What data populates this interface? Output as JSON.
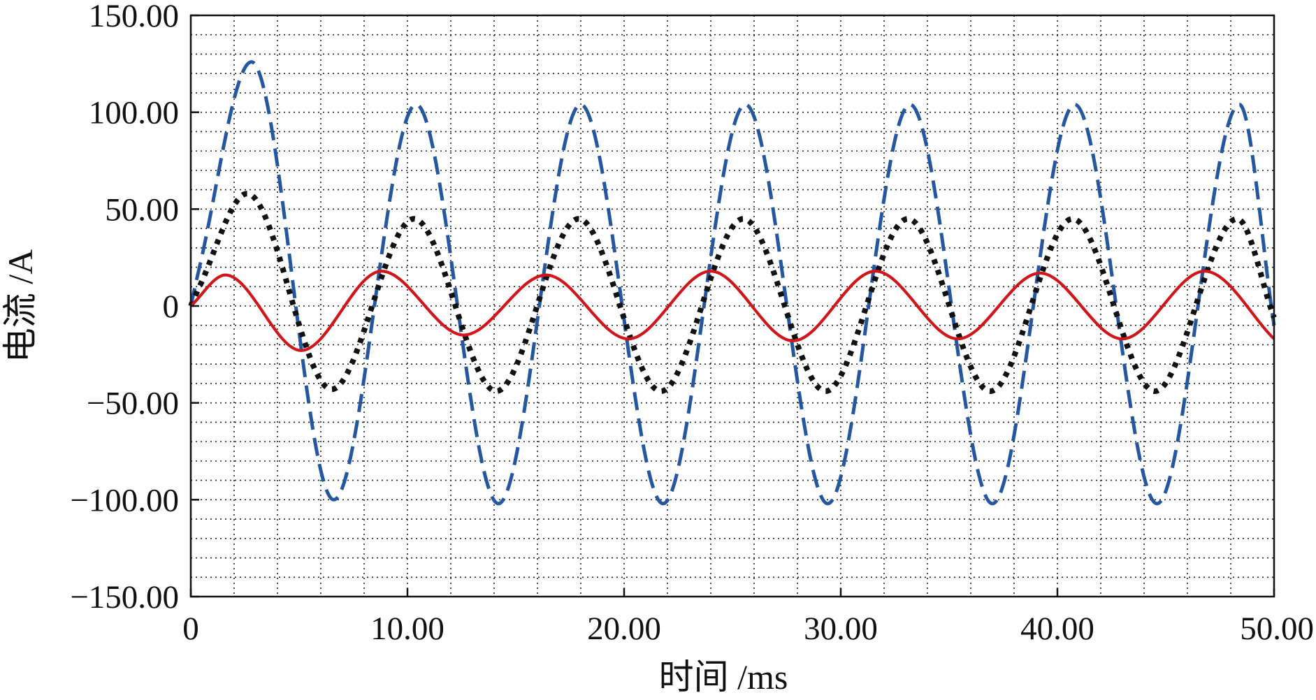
{
  "chart_data": {
    "type": "line",
    "title": "",
    "xlabel": "时间 /ms",
    "ylabel": "电流 /A",
    "xlim": [
      0,
      50
    ],
    "ylim": [
      -150,
      150
    ],
    "x_ticks": [
      0,
      10,
      20,
      30,
      40,
      50
    ],
    "x_tick_labels": [
      "0",
      "10.00",
      "20.00",
      "30.00",
      "40.00",
      "50.00"
    ],
    "y_ticks": [
      -150,
      -100,
      -50,
      0,
      50,
      100,
      150
    ],
    "y_tick_labels": [
      "−150.00",
      "−100.00",
      "−50.00",
      "0",
      "50.00",
      "100.00",
      "150.00"
    ],
    "minor_grid": {
      "x_step": 2,
      "y_step": 10,
      "style": "dotted"
    },
    "grid": true,
    "legend": "none",
    "series": [
      {
        "color": "#2457a0",
        "style": "dashed",
        "x": [
          0,
          0.4,
          2.8,
          6.6,
          10.4,
          14.2,
          18.0,
          21.8,
          25.6,
          29.4,
          33.2,
          37.0,
          40.8,
          44.6,
          48.4,
          50
        ],
        "values": [
          0,
          20,
          126,
          -100,
          104,
          -102,
          104,
          -102,
          104,
          -102,
          104,
          -102,
          104,
          -102,
          104,
          -10
        ]
      },
      {
        "color": "#111111",
        "style": "dotted",
        "x": [
          0,
          0.4,
          2.6,
          6.5,
          10.3,
          14.1,
          17.9,
          21.7,
          25.5,
          29.3,
          33.1,
          36.9,
          40.7,
          44.5,
          48.3,
          50
        ],
        "values": [
          0,
          10,
          58,
          -43,
          45,
          -44,
          45,
          -44,
          45,
          -44,
          45,
          -44,
          45,
          -44,
          45,
          -6
        ]
      },
      {
        "color": "#d0161b",
        "style": "solid",
        "x": [
          0,
          1.6,
          5.1,
          8.8,
          12.6,
          16.4,
          20.2,
          24.0,
          27.8,
          31.6,
          35.4,
          39.2,
          43.0,
          46.8,
          50
        ],
        "values": [
          0,
          16,
          -23,
          18,
          -15,
          16,
          -17,
          18,
          -18,
          18,
          -17,
          17,
          -17,
          18,
          -17
        ]
      }
    ]
  }
}
